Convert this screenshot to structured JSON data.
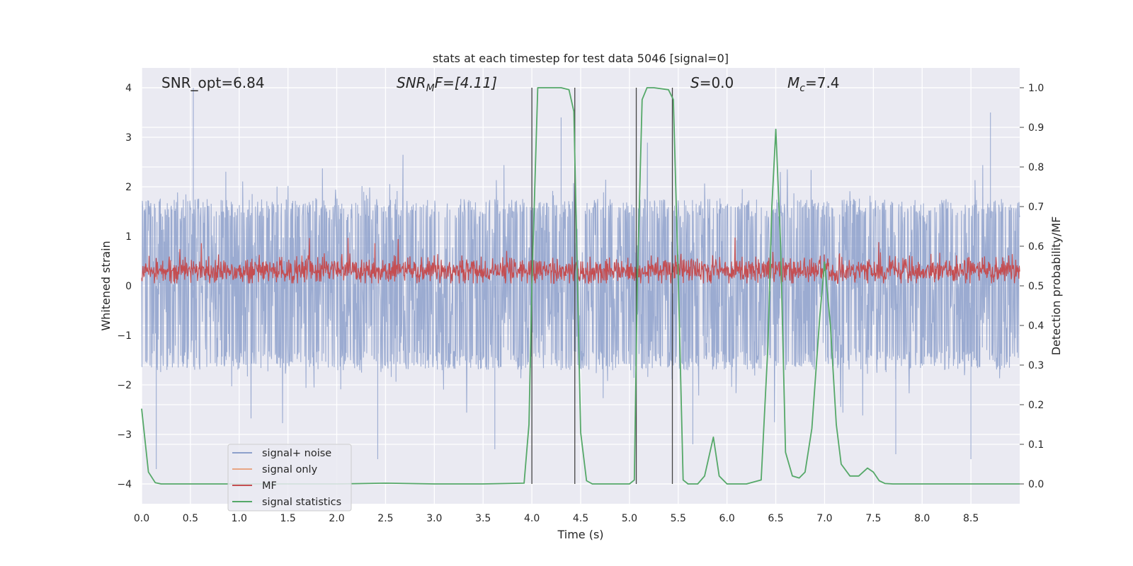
{
  "chart_data": {
    "type": "line",
    "title": "stats at each timestep for test data 5046 [signal=0]",
    "xlabel": "Time (s)",
    "ylabel_left": "Whitened strain",
    "ylabel_right": "Detection probability/MF",
    "xlim": [
      0,
      9.0
    ],
    "ylim_left": [
      -4.4,
      4.4
    ],
    "ylim_right": [
      -0.05,
      1.05
    ],
    "x_ticks": [
      "0.0",
      "0.5",
      "1.0",
      "1.5",
      "2.0",
      "2.5",
      "3.0",
      "3.5",
      "4.0",
      "4.5",
      "5.0",
      "5.5",
      "6.0",
      "6.5",
      "7.0",
      "7.5",
      "8.0",
      "8.5"
    ],
    "y_left_ticks": [
      "4",
      "3",
      "2",
      "1",
      "0",
      "−1",
      "−2",
      "−3",
      "−4"
    ],
    "y_right_ticks": [
      "1.0",
      "0.9",
      "0.8",
      "0.7",
      "0.6",
      "0.5",
      "0.4",
      "0.3",
      "0.2",
      "0.1",
      "0.0"
    ],
    "grid": true,
    "legend_position": "lower-left",
    "annotations": {
      "snr_opt": "SNR_opt=6.84",
      "snr_mf_main": "SNR",
      "snr_mf_sub": "M",
      "snr_mf_rest": "F=[4.11]",
      "s_main": "S",
      "s_rest": "=0.0",
      "mc_main": "M",
      "mc_sub": "c",
      "mc_rest": "=7.4"
    },
    "vertical_lines_x": [
      4.0,
      4.44,
      5.07,
      5.44
    ],
    "series": [
      {
        "name": "signal+ noise",
        "color": "#8da0cb",
        "axis": "left",
        "description": "noisy whitened strain, spanning roughly -1.5 to 1.6 with spikes to about ±3.5 and a peak of 4.0 at t=0.53",
        "envelope": [
          -1.55,
          1.6
        ],
        "notable_spikes": [
          [
            0.53,
            4.0
          ],
          [
            0.15,
            -3.7
          ],
          [
            2.42,
            -3.5
          ],
          [
            3.62,
            -3.3
          ],
          [
            5.65,
            -3.2
          ],
          [
            8.5,
            -3.5
          ],
          [
            7.73,
            -3.4
          ],
          [
            4.3,
            3.4
          ],
          [
            8.7,
            3.5
          ]
        ]
      },
      {
        "name": "signal only",
        "color": "#e8a584",
        "axis": "left",
        "description": "not visible above noise (signal=0)"
      },
      {
        "name": "MF",
        "color": "#c44e52",
        "axis": "left",
        "description": "matched filter output, roughly 0.05 to 0.7 with small spikes near 1.0",
        "range": [
          0.05,
          0.75
        ]
      },
      {
        "name": "signal statistics",
        "color": "#55a868",
        "axis": "right",
        "x": [
          0.0,
          0.07,
          0.14,
          0.2,
          0.5,
          1.0,
          2.0,
          2.5,
          3.0,
          3.5,
          3.92,
          3.97,
          4.0,
          4.06,
          4.3,
          4.38,
          4.43,
          4.5,
          4.56,
          4.62,
          4.7,
          5.0,
          5.05,
          5.08,
          5.13,
          5.18,
          5.25,
          5.4,
          5.45,
          5.5,
          5.55,
          5.6,
          5.7,
          5.77,
          5.86,
          5.92,
          6.0,
          6.2,
          6.35,
          6.42,
          6.46,
          6.5,
          6.55,
          6.6,
          6.67,
          6.74,
          6.8,
          6.87,
          6.95,
          7.0,
          7.06,
          7.12,
          7.17,
          7.26,
          7.35,
          7.44,
          7.5,
          7.56,
          7.62,
          7.7,
          8.0,
          8.5,
          9.0
        ],
        "values": [
          0.19,
          0.03,
          0.003,
          0.0,
          0.0,
          0.0,
          0.0,
          0.002,
          0.0,
          0.0,
          0.002,
          0.15,
          0.5,
          1.0,
          1.0,
          0.995,
          0.94,
          0.13,
          0.008,
          0.0,
          0.0,
          0.0,
          0.01,
          0.5,
          0.97,
          1.0,
          1.0,
          0.995,
          0.97,
          0.52,
          0.01,
          0.0,
          0.0,
          0.02,
          0.118,
          0.02,
          0.0,
          0.0,
          0.01,
          0.35,
          0.7,
          0.895,
          0.6,
          0.08,
          0.02,
          0.015,
          0.03,
          0.14,
          0.42,
          0.56,
          0.4,
          0.15,
          0.05,
          0.02,
          0.02,
          0.04,
          0.03,
          0.008,
          0.001,
          0.0,
          0.0,
          0.0,
          0.0
        ]
      }
    ]
  }
}
